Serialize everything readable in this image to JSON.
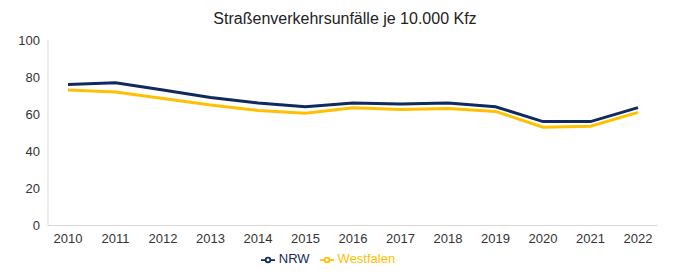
{
  "chart_data": {
    "type": "line",
    "title": "Straßenverkehrsunfälle je 10.000 Kfz",
    "categories": [
      "2010",
      "2011",
      "2012",
      "2013",
      "2014",
      "2015",
      "2016",
      "2017",
      "2018",
      "2019",
      "2020",
      "2021",
      "2022"
    ],
    "series": [
      {
        "name": "NRW",
        "color": "#0f2a5c",
        "values": [
          76,
          77,
          73,
          69,
          66,
          64,
          66,
          65.5,
          66,
          64,
          56,
          56,
          63.5
        ]
      },
      {
        "name": "Westfalen",
        "color": "#ffc000",
        "values": [
          73,
          72,
          68.5,
          65,
          62,
          60.5,
          63.5,
          62.5,
          63,
          61.5,
          53,
          53.5,
          61
        ]
      }
    ],
    "ylim": [
      0,
      100
    ],
    "yticks": [
      0,
      20,
      40,
      60,
      80,
      100
    ],
    "grid": false,
    "legend": "bottom"
  }
}
